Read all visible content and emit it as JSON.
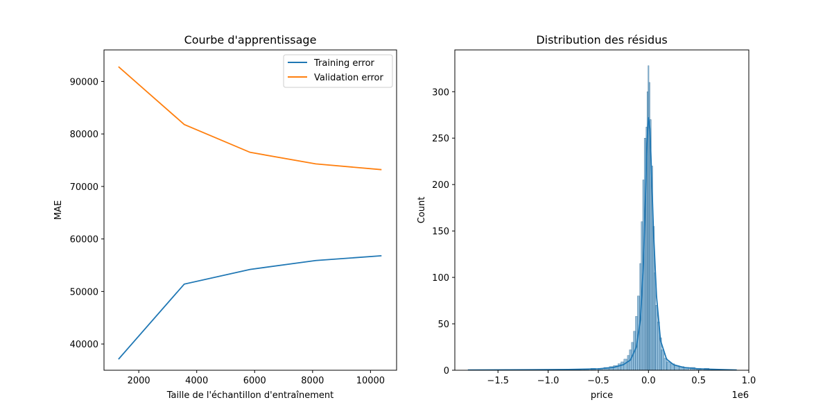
{
  "chart_data": [
    {
      "type": "line",
      "title": "Courbe d'apprentissage",
      "xlabel": "Taille de l'échantillon d'entraînement",
      "ylabel": "MAE",
      "xlim": [
        800,
        10900
      ],
      "ylim": [
        35000,
        96000
      ],
      "x": [
        1300,
        3570,
        5840,
        8110,
        10380
      ],
      "xticks": [
        2000,
        4000,
        6000,
        8000,
        10000
      ],
      "yticks": [
        40000,
        50000,
        60000,
        70000,
        80000,
        90000
      ],
      "legend": "top-right",
      "grid": false,
      "series": [
        {
          "name": "Training error",
          "color": "#1f77b4",
          "values": [
            37100,
            51400,
            54200,
            55900,
            56800
          ]
        },
        {
          "name": "Validation error",
          "color": "#ff7f0e",
          "values": [
            92800,
            81800,
            76500,
            74300,
            73200
          ]
        }
      ]
    },
    {
      "type": "bar",
      "subtype": "histogram-with-kde",
      "title": "Distribution des résidus",
      "xlabel": "price",
      "ylabel": "Count",
      "x_offset_label": "1e6",
      "xlim": [
        -1.93,
        1.0
      ],
      "ylim": [
        0,
        345
      ],
      "xticks": [
        -1.5,
        -1.0,
        -0.5,
        0.0,
        0.5,
        1.0
      ],
      "xtick_labels": [
        "−1.5",
        "−1.0",
        "−0.5",
        "0.0",
        "0.5",
        "1.0"
      ],
      "yticks": [
        0,
        50,
        100,
        150,
        200,
        250,
        300
      ],
      "grid": false,
      "bar_color": "#1f77b4",
      "bins": [
        {
          "x": -0.7,
          "count": 1
        },
        {
          "x": -0.62,
          "count": 1
        },
        {
          "x": -0.55,
          "count": 2
        },
        {
          "x": -0.48,
          "count": 2
        },
        {
          "x": -0.42,
          "count": 3
        },
        {
          "x": -0.37,
          "count": 4
        },
        {
          "x": -0.33,
          "count": 5
        },
        {
          "x": -0.29,
          "count": 7
        },
        {
          "x": -0.26,
          "count": 9
        },
        {
          "x": -0.23,
          "count": 12
        },
        {
          "x": -0.2,
          "count": 16
        },
        {
          "x": -0.18,
          "count": 22
        },
        {
          "x": -0.16,
          "count": 30
        },
        {
          "x": -0.14,
          "count": 42
        },
        {
          "x": -0.12,
          "count": 58
        },
        {
          "x": -0.1,
          "count": 80
        },
        {
          "x": -0.08,
          "count": 115
        },
        {
          "x": -0.065,
          "count": 160
        },
        {
          "x": -0.05,
          "count": 205
        },
        {
          "x": -0.035,
          "count": 250
        },
        {
          "x": -0.02,
          "count": 262
        },
        {
          "x": -0.01,
          "count": 300
        },
        {
          "x": 0.0,
          "count": 328
        },
        {
          "x": 0.01,
          "count": 310
        },
        {
          "x": 0.02,
          "count": 270
        },
        {
          "x": 0.035,
          "count": 220
        },
        {
          "x": 0.05,
          "count": 155
        },
        {
          "x": 0.065,
          "count": 105
        },
        {
          "x": 0.08,
          "count": 70
        },
        {
          "x": 0.1,
          "count": 52
        },
        {
          "x": 0.12,
          "count": 35
        },
        {
          "x": 0.14,
          "count": 22
        },
        {
          "x": 0.17,
          "count": 13
        },
        {
          "x": 0.2,
          "count": 9
        },
        {
          "x": 0.24,
          "count": 7
        },
        {
          "x": 0.28,
          "count": 5
        },
        {
          "x": 0.33,
          "count": 4
        },
        {
          "x": 0.38,
          "count": 3
        },
        {
          "x": 0.44,
          "count": 3
        },
        {
          "x": 0.5,
          "count": 2
        },
        {
          "x": 0.58,
          "count": 2
        },
        {
          "x": 0.67,
          "count": 1
        }
      ],
      "kde_x": [
        -1.8,
        -1.2,
        -0.8,
        -0.5,
        -0.35,
        -0.25,
        -0.18,
        -0.12,
        -0.08,
        -0.05,
        -0.03,
        -0.015,
        0.0,
        0.015,
        0.03,
        0.05,
        0.08,
        0.12,
        0.18,
        0.25,
        0.35,
        0.5,
        0.7,
        0.88
      ],
      "kde_y": [
        0.3,
        0.5,
        0.8,
        1.5,
        3,
        6,
        11,
        25,
        55,
        115,
        185,
        245,
        272,
        260,
        215,
        150,
        80,
        32,
        12,
        6,
        3,
        1.5,
        0.8,
        0.3
      ]
    }
  ]
}
